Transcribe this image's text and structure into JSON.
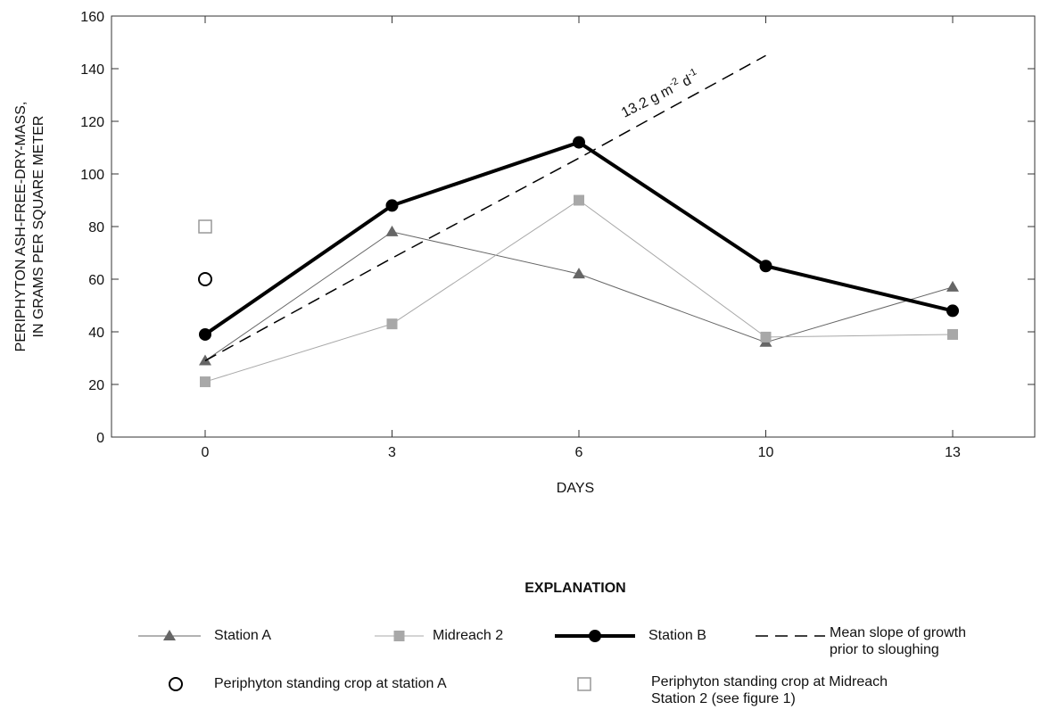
{
  "chart_data": {
    "type": "line",
    "x_label": "DAYS",
    "y_label": [
      "PERIPHYTON ASH-FREE-DRY-MASS,",
      "IN GRAMS PER SQUARE METER"
    ],
    "categories": [
      "0",
      "3",
      "6",
      "10",
      "13"
    ],
    "ylim": [
      0,
      160
    ],
    "yticks": [
      0,
      20,
      40,
      60,
      80,
      100,
      120,
      140,
      160
    ],
    "grid": false,
    "legend_title": "EXPLANATION",
    "annotation": [
      "13.2 g m",
      "-2",
      " d",
      "-1"
    ],
    "series": [
      {
        "name": "Station A",
        "color": "#666666",
        "marker": "triangle",
        "line_width": 1,
        "dash": false,
        "values": [
          29,
          78,
          62,
          36,
          57
        ]
      },
      {
        "name": "Midreach 2",
        "color": "#a8a8a8",
        "marker": "square",
        "line_width": 1,
        "dash": false,
        "values": [
          21,
          43,
          90,
          38,
          39
        ]
      },
      {
        "name": "Station B",
        "color": "#000000",
        "marker": "circle",
        "line_width": 4,
        "dash": false,
        "values": [
          39,
          88,
          112,
          65,
          48
        ]
      },
      {
        "name": "Mean slope of growth prior to sloughing",
        "color": "#000000",
        "marker": "none",
        "line_width": 1.5,
        "dash": true,
        "values": [
          29,
          68,
          106,
          145,
          null
        ]
      },
      {
        "name": "Periphyton standing crop at station A",
        "color": "#000000",
        "marker": "circle-open",
        "line_width": 0,
        "dash": false,
        "values": [
          60,
          null,
          null,
          null,
          null
        ]
      },
      {
        "name": "Periphyton standing crop at Midreach Station 2 (see figure 1)",
        "color": "#999999",
        "marker": "square-open",
        "line_width": 0,
        "dash": false,
        "values": [
          80,
          null,
          null,
          null,
          null
        ]
      }
    ]
  }
}
